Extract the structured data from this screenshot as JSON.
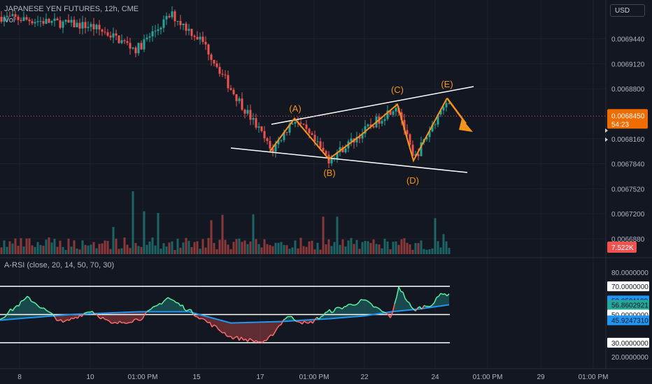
{
  "header": {
    "symbol_title": "JAPANESE YEN FUTURES, 12h, CME",
    "volume_label": "Vol",
    "currency_button": "USD"
  },
  "price_scale": {
    "labels": [
      "0.0069440",
      "0.0069120",
      "0.0068800",
      "0.0068160",
      "0.0067840",
      "0.0067520",
      "0.0067200",
      "0.0066880"
    ],
    "current_price": "0.0068450",
    "countdown": "54:23",
    "volume_value": "7.522K"
  },
  "rsi": {
    "title": "A-RSI (close, 20, 14, 50, 70, 30)",
    "scale_labels": [
      "80.0000000",
      "20.0000000"
    ],
    "level_labels": [
      "70.0000000",
      "59.9591180",
      "56.8602921",
      "50.0000000",
      "45.9247310",
      "30.0000000"
    ],
    "level_colors": [
      "#ffffff",
      "#2196f3",
      "#26a69a",
      "#ffffff",
      "#2196f3",
      "#ffffff"
    ]
  },
  "time_axis": {
    "labels": [
      "8",
      "10",
      "01:00 PM",
      "15",
      "17",
      "01:00 PM",
      "22",
      "24",
      "01:00 PM",
      "29",
      "01:00 PM"
    ]
  },
  "annotations": {
    "wave_labels": [
      "(A)",
      "(B)",
      "(C)",
      "(D)",
      "(E)"
    ]
  },
  "colors": {
    "background": "#131722",
    "up": "#26a69a",
    "down": "#ef5350",
    "wave": "#f7931a",
    "rsi_line": "#26a69a",
    "rsi_signal": "#2196f3"
  },
  "chart_data": {
    "type": "candlestick",
    "y_range": [
      0.00668,
      0.00698
    ],
    "y_ticks": [
      0.006944,
      0.006912,
      0.00688,
      0.006816,
      0.006784,
      0.006752,
      0.00672,
      0.006688
    ],
    "anchors": [
      {
        "label": "start",
        "price": 0.006975
      },
      {
        "label": "(A)",
        "price": 0.006842
      },
      {
        "label": "(B)",
        "price": 0.00679
      },
      {
        "label": "(C)",
        "price": 0.00686
      },
      {
        "label": "(D)",
        "price": 0.006788
      },
      {
        "label": "(E)",
        "price": 0.006868
      },
      {
        "label": "last",
        "price": 0.006845
      }
    ],
    "rsi_range": [
      20,
      80
    ],
    "rsi_levels": [
      70,
      50,
      30
    ],
    "rsi_last": 56.86,
    "rsi_signal_last": 45.92
  }
}
